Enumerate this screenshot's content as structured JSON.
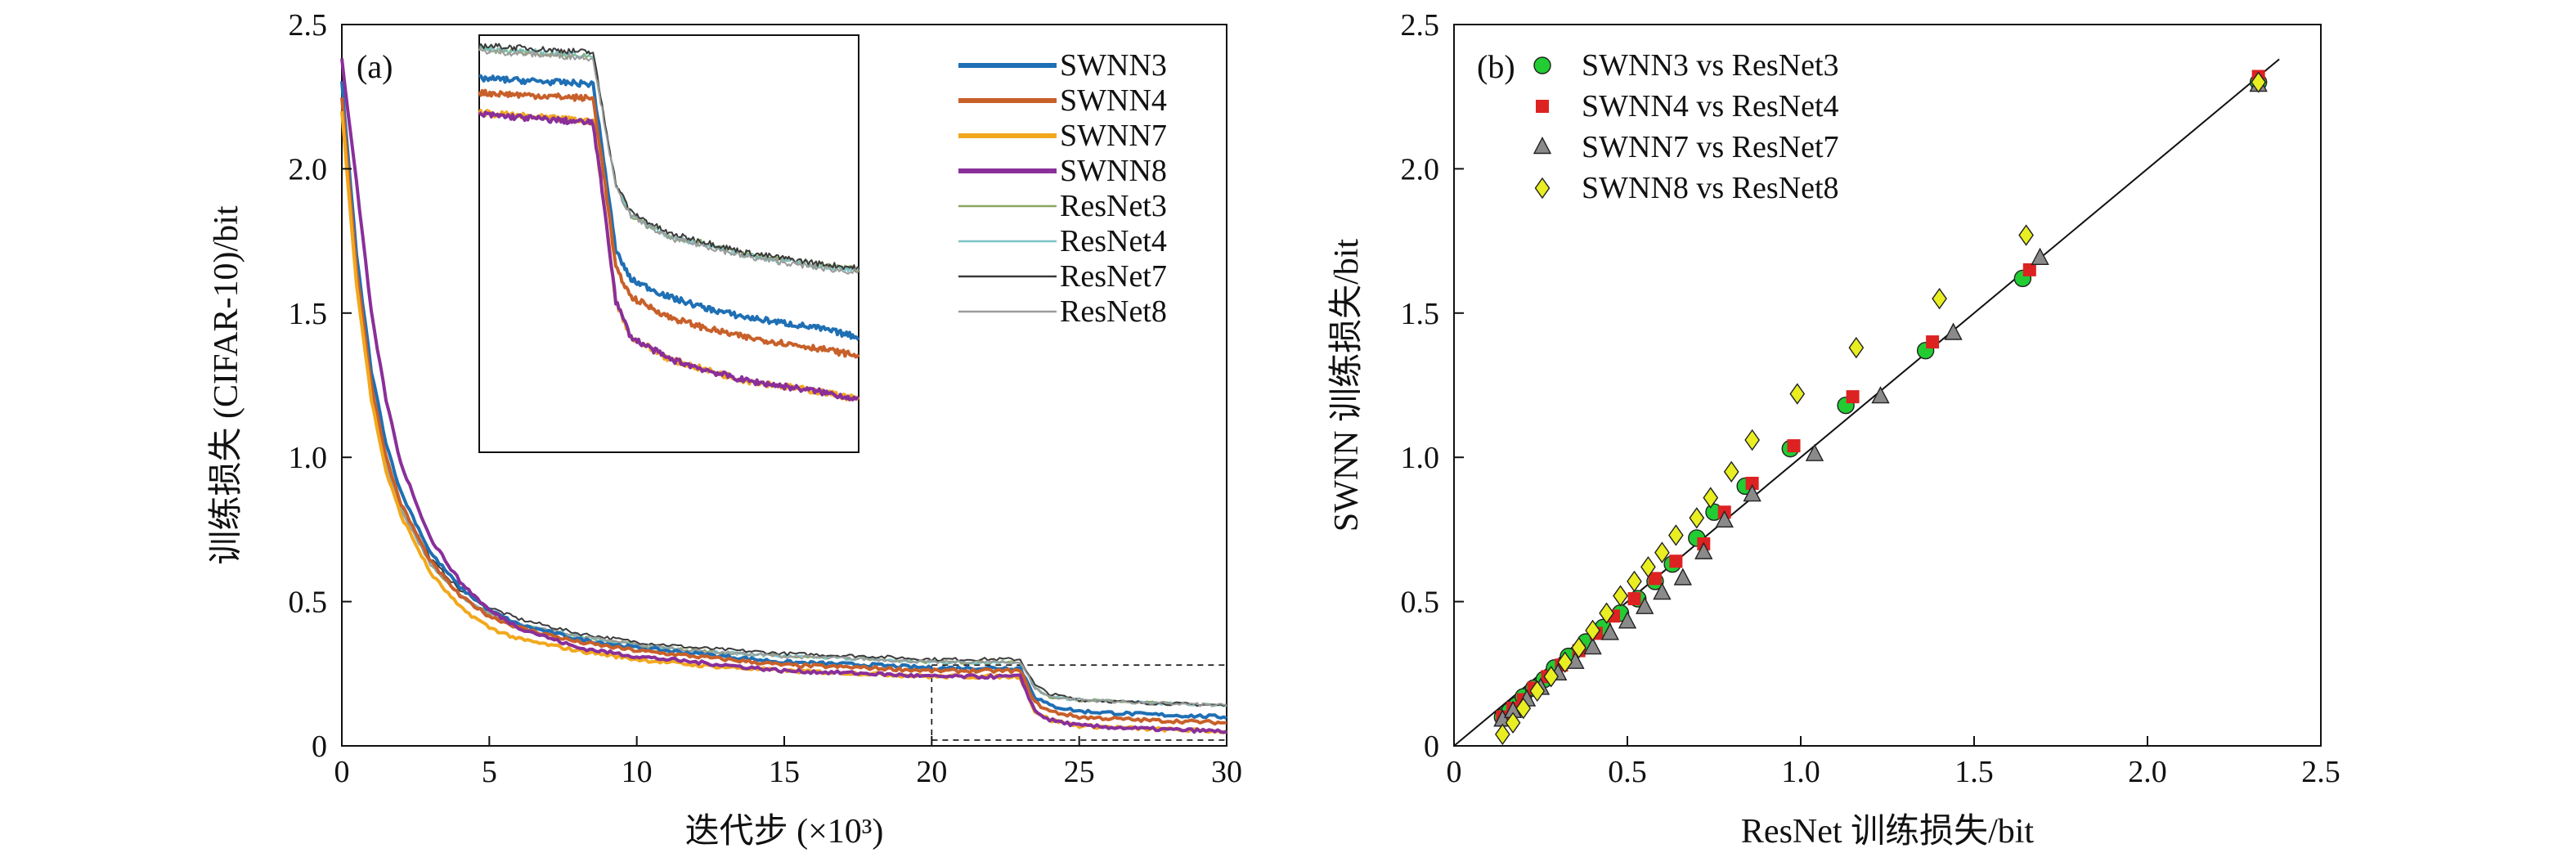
{
  "colors": {
    "SWNN3": "#1f6fb4",
    "SWNN4": "#c8602a",
    "SWNN7": "#f2a81d",
    "SWNN8": "#8a2f9a",
    "ResNet3": "#8aa661",
    "ResNet4": "#7cc3c4",
    "ResNet7": "#3a3a3a",
    "ResNet8": "#9b9b9b",
    "scatter_SWNN3": "#22cc33",
    "scatter_SWNN4": "#dd2222",
    "scatter_SWNN7": "#8a8a8a",
    "scatter_SWNN8": "#e8ee22",
    "diag_line": "#111111"
  },
  "chart_data": [
    {
      "type": "line",
      "panel_label": "(a)",
      "xlabel": "迭代步 (×10³)",
      "ylabel": "训练损失 (CIFAR-10)/bit",
      "xlim": [
        0,
        30
      ],
      "ylim": [
        0,
        2.5
      ],
      "xticks": [
        "0",
        "5",
        "10",
        "15",
        "20",
        "25",
        "30"
      ],
      "yticks": [
        "0",
        "0.5",
        "1.0",
        "1.5",
        "2.0",
        "2.5"
      ],
      "legend_position": "top-right",
      "x": [
        0,
        0.5,
        1,
        1.5,
        2,
        3,
        4,
        5,
        6,
        8,
        10,
        12,
        15,
        18,
        20,
        23,
        23.5,
        24,
        25,
        27,
        30
      ],
      "series": [
        {
          "name": "SWNN3",
          "color_key": "SWNN3",
          "width": "thick",
          "values": [
            2.3,
            1.7,
            1.3,
            1.05,
            0.88,
            0.67,
            0.55,
            0.47,
            0.42,
            0.37,
            0.34,
            0.32,
            0.29,
            0.28,
            0.27,
            0.27,
            0.17,
            0.14,
            0.12,
            0.11,
            0.1
          ]
        },
        {
          "name": "SWNN4",
          "color_key": "SWNN4",
          "width": "thick",
          "values": [
            2.25,
            1.65,
            1.25,
            1.0,
            0.84,
            0.64,
            0.52,
            0.45,
            0.41,
            0.36,
            0.33,
            0.31,
            0.28,
            0.27,
            0.26,
            0.26,
            0.15,
            0.12,
            0.1,
            0.09,
            0.08
          ]
        },
        {
          "name": "SWNN7",
          "color_key": "SWNN7",
          "width": "thick",
          "values": [
            2.2,
            1.6,
            1.2,
            0.95,
            0.8,
            0.6,
            0.48,
            0.41,
            0.37,
            0.33,
            0.3,
            0.28,
            0.26,
            0.25,
            0.24,
            0.24,
            0.12,
            0.09,
            0.07,
            0.06,
            0.05
          ]
        },
        {
          "name": "SWNN8",
          "color_key": "SWNN8",
          "width": "thick",
          "values": [
            2.38,
            1.95,
            1.5,
            1.2,
            0.98,
            0.72,
            0.57,
            0.47,
            0.41,
            0.34,
            0.31,
            0.29,
            0.26,
            0.25,
            0.24,
            0.24,
            0.12,
            0.09,
            0.07,
            0.06,
            0.05
          ]
        },
        {
          "name": "ResNet3",
          "color_key": "ResNet3",
          "width": "thin",
          "values": [
            2.2,
            1.6,
            1.22,
            0.98,
            0.82,
            0.63,
            0.52,
            0.46,
            0.42,
            0.38,
            0.35,
            0.33,
            0.31,
            0.3,
            0.29,
            0.29,
            0.2,
            0.17,
            0.16,
            0.15,
            0.14
          ]
        },
        {
          "name": "ResNet4",
          "color_key": "ResNet4",
          "width": "thin",
          "values": [
            2.2,
            1.6,
            1.22,
            0.98,
            0.82,
            0.63,
            0.52,
            0.46,
            0.42,
            0.38,
            0.35,
            0.33,
            0.31,
            0.3,
            0.29,
            0.29,
            0.2,
            0.17,
            0.16,
            0.15,
            0.14
          ]
        },
        {
          "name": "ResNet7",
          "color_key": "ResNet7",
          "width": "thin",
          "values": [
            2.22,
            1.62,
            1.24,
            1.0,
            0.84,
            0.65,
            0.54,
            0.48,
            0.44,
            0.39,
            0.36,
            0.34,
            0.32,
            0.31,
            0.3,
            0.3,
            0.21,
            0.18,
            0.16,
            0.15,
            0.14
          ]
        },
        {
          "name": "ResNet8",
          "color_key": "ResNet8",
          "width": "thin",
          "values": [
            2.2,
            1.6,
            1.22,
            0.98,
            0.82,
            0.63,
            0.52,
            0.46,
            0.42,
            0.38,
            0.35,
            0.33,
            0.31,
            0.3,
            0.29,
            0.29,
            0.2,
            0.17,
            0.16,
            0.15,
            0.14
          ]
        }
      ],
      "zoom_region": {
        "x": [
          20,
          30
        ],
        "y": [
          0.02,
          0.28
        ]
      },
      "inset": {
        "x": [
          20,
          23,
          23.3,
          23.6,
          24,
          25,
          26,
          27,
          28,
          29,
          30
        ],
        "ylim": [
          0.02,
          0.31
        ],
        "series": [
          {
            "name": "ResNet3",
            "values": [
              0.3,
              0.295,
              0.25,
              0.205,
              0.185,
              0.17,
              0.165,
              0.158,
              0.154,
              0.15,
              0.147
            ]
          },
          {
            "name": "ResNet4",
            "values": [
              0.301,
              0.296,
              0.25,
              0.205,
              0.185,
              0.17,
              0.164,
              0.157,
              0.153,
              0.149,
              0.146
            ]
          },
          {
            "name": "ResNet7",
            "values": [
              0.303,
              0.298,
              0.252,
              0.207,
              0.187,
              0.172,
              0.166,
              0.159,
              0.155,
              0.151,
              0.148
            ]
          },
          {
            "name": "ResNet8",
            "values": [
              0.299,
              0.294,
              0.249,
              0.204,
              0.184,
              0.169,
              0.163,
              0.156,
              0.152,
              0.148,
              0.145
            ]
          },
          {
            "name": "SWNN3",
            "values": [
              0.28,
              0.276,
              0.22,
              0.16,
              0.14,
              0.128,
              0.12,
              0.114,
              0.11,
              0.106,
              0.1
            ]
          },
          {
            "name": "SWNN4",
            "values": [
              0.27,
              0.266,
              0.21,
              0.148,
              0.128,
              0.114,
              0.106,
              0.1,
              0.096,
              0.092,
              0.087
            ]
          },
          {
            "name": "SWNN7",
            "values": [
              0.256,
              0.25,
              0.19,
              0.125,
              0.1,
              0.085,
              0.077,
              0.07,
              0.066,
              0.062,
              0.057
            ]
          },
          {
            "name": "SWNN8",
            "values": [
              0.255,
              0.249,
              0.19,
              0.125,
              0.1,
              0.085,
              0.077,
              0.07,
              0.066,
              0.062,
              0.057
            ]
          }
        ]
      }
    },
    {
      "type": "scatter",
      "panel_label": "(b)",
      "xlabel": "ResNet 训练损失/bit",
      "ylabel": "SWNN 训练损失/bit",
      "xlim": [
        0,
        2.5
      ],
      "ylim": [
        0,
        2.5
      ],
      "xticks": [
        "0",
        "0.5",
        "1.0",
        "1.5",
        "2.0",
        "2.5"
      ],
      "yticks": [
        "0",
        "0.5",
        "1.0",
        "1.5",
        "2.0",
        "2.5"
      ],
      "legend_position": "top-left",
      "diagonal": {
        "from": [
          0,
          0
        ],
        "to": [
          2.38,
          2.38
        ]
      },
      "series": [
        {
          "name": "SWNN3 vs ResNet3",
          "marker": "circle",
          "color_key": "scatter_SWNN3",
          "points": [
            [
              0.14,
              0.1
            ],
            [
              0.16,
              0.12
            ],
            [
              0.18,
              0.14
            ],
            [
              0.2,
              0.17
            ],
            [
              0.23,
              0.2
            ],
            [
              0.26,
              0.23
            ],
            [
              0.29,
              0.27
            ],
            [
              0.33,
              0.31
            ],
            [
              0.38,
              0.36
            ],
            [
              0.43,
              0.41
            ],
            [
              0.48,
              0.46
            ],
            [
              0.53,
              0.51
            ],
            [
              0.58,
              0.57
            ],
            [
              0.63,
              0.63
            ],
            [
              0.7,
              0.72
            ],
            [
              0.75,
              0.81
            ],
            [
              0.84,
              0.9
            ],
            [
              0.97,
              1.03
            ],
            [
              1.13,
              1.18
            ],
            [
              1.36,
              1.37
            ],
            [
              1.64,
              1.62
            ],
            [
              2.32,
              2.3
            ]
          ]
        },
        {
          "name": "SWNN4 vs ResNet4",
          "marker": "square",
          "color_key": "scatter_SWNN4",
          "points": [
            [
              0.14,
              0.1
            ],
            [
              0.17,
              0.13
            ],
            [
              0.2,
              0.16
            ],
            [
              0.23,
              0.2
            ],
            [
              0.27,
              0.24
            ],
            [
              0.31,
              0.28
            ],
            [
              0.36,
              0.33
            ],
            [
              0.41,
              0.39
            ],
            [
              0.46,
              0.45
            ],
            [
              0.52,
              0.51
            ],
            [
              0.58,
              0.58
            ],
            [
              0.64,
              0.64
            ],
            [
              0.72,
              0.7
            ],
            [
              0.78,
              0.81
            ],
            [
              0.86,
              0.91
            ],
            [
              0.98,
              1.04
            ],
            [
              1.15,
              1.21
            ],
            [
              1.38,
              1.4
            ],
            [
              1.66,
              1.65
            ],
            [
              2.32,
              2.32
            ]
          ]
        },
        {
          "name": "SWNN7 vs ResNet7",
          "marker": "triangle",
          "color_key": "scatter_SWNN7",
          "points": [
            [
              0.14,
              0.09
            ],
            [
              0.17,
              0.12
            ],
            [
              0.21,
              0.16
            ],
            [
              0.25,
              0.2
            ],
            [
              0.3,
              0.25
            ],
            [
              0.35,
              0.29
            ],
            [
              0.4,
              0.34
            ],
            [
              0.45,
              0.39
            ],
            [
              0.5,
              0.43
            ],
            [
              0.55,
              0.48
            ],
            [
              0.6,
              0.53
            ],
            [
              0.66,
              0.58
            ],
            [
              0.72,
              0.67
            ],
            [
              0.78,
              0.78
            ],
            [
              0.86,
              0.87
            ],
            [
              1.04,
              1.01
            ],
            [
              1.23,
              1.21
            ],
            [
              1.44,
              1.43
            ],
            [
              1.69,
              1.69
            ],
            [
              2.32,
              2.29
            ]
          ]
        },
        {
          "name": "SWNN8 vs ResNet8",
          "marker": "diamond",
          "color_key": "scatter_SWNN8",
          "points": [
            [
              0.14,
              0.04
            ],
            [
              0.17,
              0.08
            ],
            [
              0.2,
              0.13
            ],
            [
              0.24,
              0.19
            ],
            [
              0.28,
              0.24
            ],
            [
              0.32,
              0.29
            ],
            [
              0.36,
              0.34
            ],
            [
              0.4,
              0.4
            ],
            [
              0.44,
              0.46
            ],
            [
              0.48,
              0.52
            ],
            [
              0.52,
              0.57
            ],
            [
              0.56,
              0.62
            ],
            [
              0.6,
              0.67
            ],
            [
              0.64,
              0.73
            ],
            [
              0.7,
              0.79
            ],
            [
              0.74,
              0.86
            ],
            [
              0.8,
              0.95
            ],
            [
              0.86,
              1.06
            ],
            [
              0.99,
              1.22
            ],
            [
              1.16,
              1.38
            ],
            [
              1.4,
              1.55
            ],
            [
              1.65,
              1.77
            ],
            [
              2.32,
              2.3
            ]
          ]
        }
      ]
    }
  ]
}
